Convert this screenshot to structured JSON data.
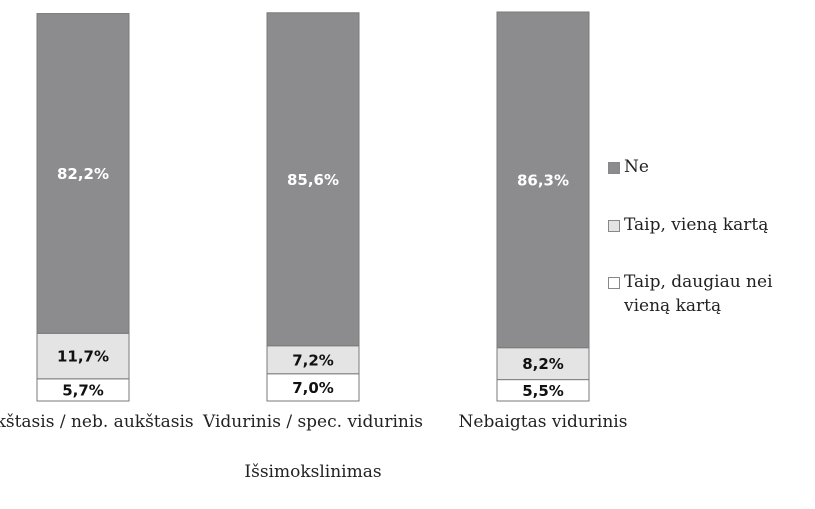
{
  "chart_data": {
    "type": "stacked_bar",
    "categories": [
      "Aukštasis / neb. aukštasis",
      "Vidurinis / spec. vidurinis",
      "Nebaigtas vidurinis"
    ],
    "x_label": "Išsimokslinimas",
    "ylim": [
      0,
      100
    ],
    "series": [
      {
        "name": "Taip, daugiau nei vieną kartą",
        "color": "#ffffff",
        "values": [
          5.7,
          7.0,
          5.5
        ],
        "value_labels": [
          "5,7%",
          "7,0%",
          "5,5%"
        ]
      },
      {
        "name": "Taip, vieną kartą",
        "color": "#e4e4e4",
        "values": [
          11.7,
          7.2,
          8.2
        ],
        "value_labels": [
          "11,7%",
          "7,2%",
          "8,2%"
        ]
      },
      {
        "name": "Ne",
        "color": "#8c8c8e",
        "values": [
          82.2,
          85.6,
          86.3
        ],
        "value_labels": [
          "82,2%",
          "85,6%",
          "86,3%"
        ]
      }
    ]
  }
}
